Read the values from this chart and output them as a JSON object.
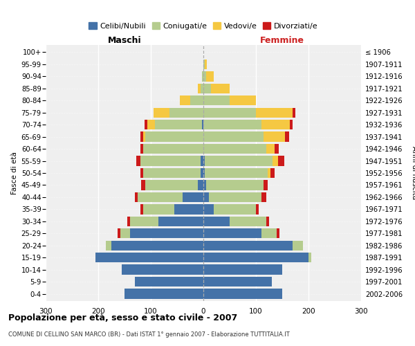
{
  "age_groups": [
    "0-4",
    "5-9",
    "10-14",
    "15-19",
    "20-24",
    "25-29",
    "30-34",
    "35-39",
    "40-44",
    "45-49",
    "50-54",
    "55-59",
    "60-64",
    "65-69",
    "70-74",
    "75-79",
    "80-84",
    "85-89",
    "90-94",
    "95-99",
    "100+"
  ],
  "birth_years": [
    "2002-2006",
    "1997-2001",
    "1992-1996",
    "1987-1991",
    "1982-1986",
    "1977-1981",
    "1972-1976",
    "1967-1971",
    "1962-1966",
    "1957-1961",
    "1952-1956",
    "1947-1951",
    "1942-1946",
    "1937-1941",
    "1932-1936",
    "1927-1931",
    "1922-1926",
    "1917-1921",
    "1912-1916",
    "1907-1911",
    "≤ 1906"
  ],
  "males": {
    "celibi": [
      150,
      130,
      155,
      205,
      175,
      140,
      85,
      55,
      40,
      10,
      5,
      5,
      0,
      0,
      2,
      0,
      0,
      0,
      0,
      0,
      0
    ],
    "coniugati": [
      0,
      0,
      0,
      0,
      10,
      18,
      55,
      60,
      85,
      100,
      110,
      115,
      115,
      110,
      90,
      65,
      25,
      5,
      2,
      0,
      0
    ],
    "vedovi": [
      0,
      0,
      0,
      0,
      0,
      0,
      0,
      0,
      0,
      0,
      0,
      0,
      0,
      5,
      15,
      30,
      20,
      5,
      0,
      0,
      0
    ],
    "divorziati": [
      0,
      0,
      0,
      0,
      0,
      5,
      5,
      5,
      5,
      8,
      5,
      8,
      5,
      5,
      5,
      0,
      0,
      0,
      0,
      0,
      0
    ]
  },
  "females": {
    "nubili": [
      150,
      130,
      150,
      200,
      170,
      110,
      50,
      20,
      10,
      5,
      2,
      2,
      0,
      0,
      0,
      0,
      0,
      0,
      0,
      0,
      0
    ],
    "coniugate": [
      0,
      0,
      0,
      5,
      20,
      30,
      70,
      80,
      100,
      110,
      120,
      130,
      120,
      115,
      110,
      100,
      50,
      15,
      5,
      2,
      0
    ],
    "vedove": [
      0,
      0,
      0,
      0,
      0,
      0,
      0,
      0,
      0,
      0,
      5,
      10,
      15,
      40,
      55,
      70,
      50,
      35,
      15,
      5,
      0
    ],
    "divorziate": [
      0,
      0,
      0,
      0,
      0,
      5,
      5,
      5,
      10,
      8,
      8,
      12,
      8,
      8,
      5,
      5,
      0,
      0,
      0,
      0,
      0
    ]
  },
  "colors": {
    "celibi": "#4472a8",
    "coniugati": "#b5cc8e",
    "vedovi": "#f5c842",
    "divorziati": "#cc1a1a"
  },
  "legend_labels": [
    "Celibi/Nubili",
    "Coniugati/e",
    "Vedovi/e",
    "Divorziati/e"
  ],
  "title": "Popolazione per età, sesso e stato civile - 2007",
  "subtitle": "COMUNE DI CELLINO SAN MARCO (BR) - Dati ISTAT 1° gennaio 2007 - Elaborazione TUTTITALIA.IT",
  "ylabel_left": "Fasce di età",
  "ylabel_right": "Anni di nascita",
  "xlabel_left": "Maschi",
  "xlabel_right": "Femmine",
  "xlim": 300,
  "bg_color": "#ffffff",
  "plot_bg_color": "#efefef"
}
